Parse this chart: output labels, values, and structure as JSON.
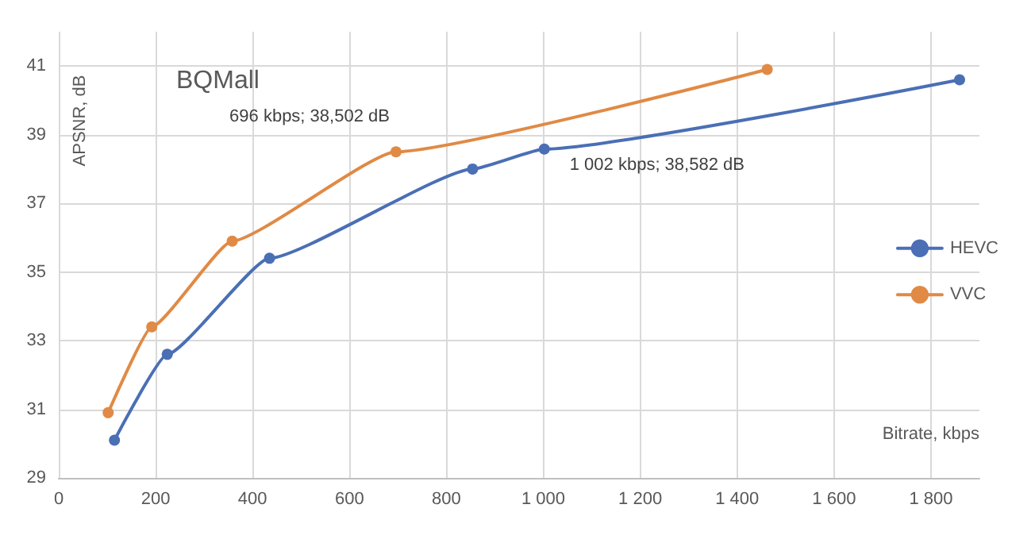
{
  "chart_data": {
    "type": "line",
    "title": "BQMall",
    "xlabel": "Bitrate, kbps",
    "ylabel": "APSNR, dB",
    "xlim": [
      0,
      1900
    ],
    "xticks": [
      0,
      200,
      400,
      600,
      800,
      {
        "value": 1000,
        "label": "1 000"
      },
      {
        "value": 1200,
        "label": "1 200"
      },
      {
        "value": 1400,
        "label": "1 400"
      },
      {
        "value": 1600,
        "label": "1 600"
      },
      {
        "value": 1800,
        "label": "1 800"
      }
    ],
    "ylim": [
      29,
      42
    ],
    "yticks": [
      29,
      31,
      33,
      35,
      37,
      39,
      41
    ],
    "grid": true,
    "legend": "right",
    "marker": "circle",
    "line_style": "solid",
    "series": [
      {
        "name": "HEVC",
        "color": "#4a6fb5",
        "x": [
          115,
          224,
          435,
          854,
          1002,
          1859
        ],
        "values": [
          30.1,
          32.6,
          35.4,
          38.0,
          38.582,
          40.6
        ]
      },
      {
        "name": "VVC",
        "color": "#e08a45",
        "x": [
          102,
          192,
          358,
          696,
          1462
        ],
        "values": [
          30.9,
          33.4,
          35.9,
          38.502,
          40.9
        ]
      }
    ],
    "annotations": [
      {
        "text": "696 kbps; 38,502 dB",
        "x": 696,
        "y": 38.502
      },
      {
        "text": "1 002 kbps; 38,582 dB",
        "x": 1002,
        "y": 38.582
      }
    ]
  }
}
